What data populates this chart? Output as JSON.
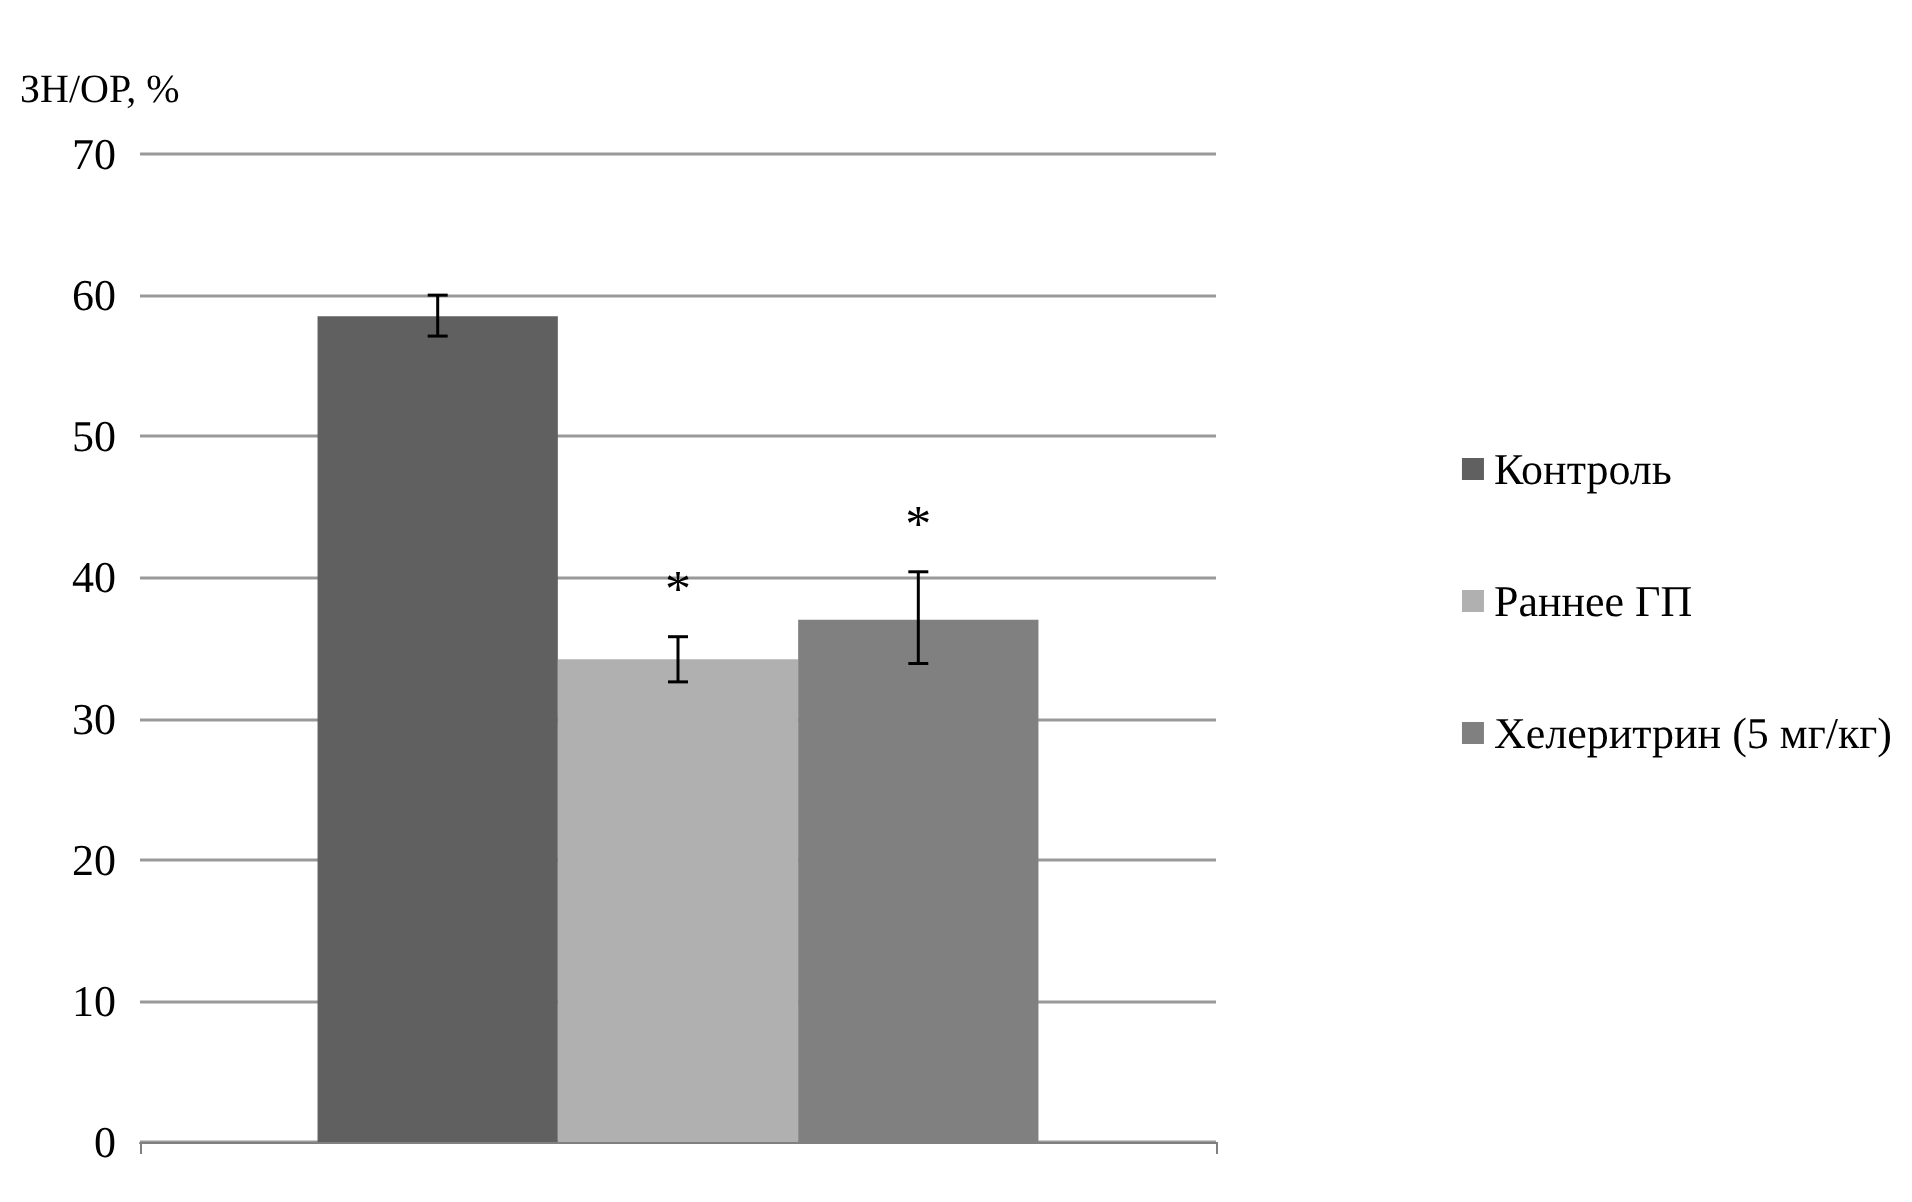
{
  "chart_data": {
    "type": "bar",
    "ylabel": "ЗН/ОР, %",
    "categories": [
      null
    ],
    "series": [
      {
        "name": "Контроль",
        "color": "#606060",
        "values": [
          58.5
        ],
        "errors": [
          [
            57.1,
            60.0
          ]
        ]
      },
      {
        "name": "Раннее ГП",
        "color": "#b0b0b0",
        "values": [
          34.2
        ],
        "errors": [
          [
            32.6,
            35.8
          ]
        ]
      },
      {
        "name": "Хелеритрин (5 мг/кг)",
        "color": "#808080",
        "values": [
          37.0
        ],
        "errors": [
          [
            33.9,
            40.4
          ]
        ]
      }
    ],
    "annotations": [
      "*",
      "*"
    ],
    "ylim": [
      0,
      70
    ],
    "yticks": [
      0,
      10,
      20,
      30,
      40,
      50,
      60,
      70
    ],
    "grid": "y",
    "legend": "right"
  }
}
